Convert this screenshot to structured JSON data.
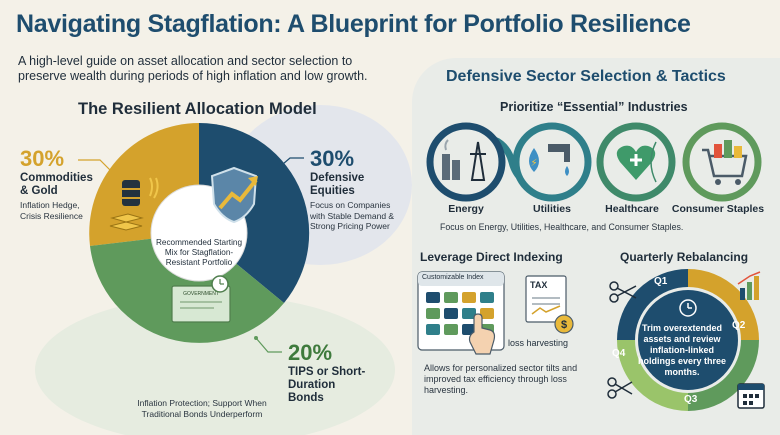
{
  "header": {
    "title": "Navigating Stagflation: A Blueprint for Portfolio Resilience",
    "subtitle": "A high-level guide on asset allocation and sector selection to preserve wealth during periods of high inflation and low growth."
  },
  "allocation": {
    "heading": "The Resilient Allocation Model",
    "center_text": "Recommended Starting Mix for Stagflation-Resistant Portfolio",
    "segments": [
      {
        "percent": "30%",
        "label": "Commodities & Gold",
        "description": "Inflation Hedge, Crisis Resilience",
        "value": 30,
        "color": "#d4a22c"
      },
      {
        "percent": "30%",
        "label": "Defensive Equities",
        "description": "Focus on Companies with Stable Demand & Strong Pricing Power",
        "value": 30,
        "color": "#1e4d6e"
      },
      {
        "percent": "20%",
        "label": "TIPS or Short-Duration Bonds",
        "description": "Inflation Protection; Support When Traditional Bonds Underperform",
        "value": 20,
        "color": "#5f9a5c"
      }
    ],
    "government_label": "GOVERNMENT"
  },
  "defensive": {
    "heading": "Defensive Sector Selection & Tactics",
    "essential_heading": "Prioritize “Essential” Industries",
    "sectors": [
      {
        "name": "Energy",
        "icon": "energy-tower-icon"
      },
      {
        "name": "Utilities",
        "icon": "water-faucet-icon"
      },
      {
        "name": "Healthcare",
        "icon": "heart-dna-icon"
      },
      {
        "name": "Consumer Staples",
        "icon": "shopping-cart-icon"
      }
    ],
    "sector_note": "Focus on Energy, Utilities, Healthcare, and Consumer Staples.",
    "indexing": {
      "heading": "Leverage Direct Indexing",
      "card_label": "Customizable Index",
      "tax_label": "TAX",
      "harvest_label": "loss harvesting",
      "description": "Allows for personalized sector tilts and improved tax efficiency through loss harvesting."
    },
    "rebalancing": {
      "heading": "Quarterly Rebalancing",
      "quarters": [
        "Q1",
        "Q2",
        "Q3",
        "Q4"
      ],
      "text": "Trim overextended assets and review inflation-linked holdings every three months."
    }
  },
  "colors": {
    "navy": "#1e4d6e",
    "gold": "#d4a22c",
    "green": "#5f9a5c",
    "teal": "#2f7f8a"
  }
}
